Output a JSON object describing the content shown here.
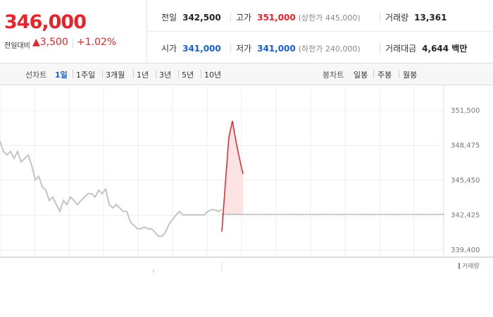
{
  "quote": {
    "price": "346,000",
    "change_label": "전일대비",
    "change": "▲3,500",
    "change_pct": "+1.02%",
    "stats": [
      {
        "label": "전일",
        "value": "342,500"
      },
      {
        "label": "고가",
        "value": "351,000",
        "note": "(상한가 445,000)"
      },
      {
        "label": "거래량",
        "value": "13,361"
      },
      {
        "label": "시가",
        "value": "341,000"
      },
      {
        "label": "저가",
        "value": "341,000",
        "note": "(하한가 240,000)"
      },
      {
        "label": "거래대금",
        "value": "4,644 백만"
      }
    ]
  },
  "tabs": {
    "line_label": "선차트",
    "line": [
      "1일",
      "1주일",
      "3개월",
      "1년",
      "3년",
      "5년",
      "10년"
    ],
    "candle_label": "봉차트",
    "candle": [
      "일봉",
      "주봉",
      "월봉"
    ]
  },
  "chart_data": {
    "type": "line",
    "categories": [
      null,
      null,
      null,
      null,
      null,
      null,
      null,
      null,
      null,
      null,
      null,
      null,
      null,
      null,
      null,
      null,
      null,
      null,
      null,
      null,
      null,
      null,
      null,
      null,
      null,
      null,
      null,
      null,
      null,
      null,
      null,
      null,
      null,
      null,
      null,
      null,
      null,
      null,
      null,
      null,
      null,
      null,
      null,
      null,
      null,
      null,
      null,
      null,
      null,
      null,
      null,
      null,
      null,
      null,
      null,
      null,
      null,
      null,
      null,
      null,
      null,
      null,
      null,
      null,
      null,
      null,
      null,
      null,
      null,
      null,
      null,
      null,
      null,
      null,
      null,
      null,
      null,
      null,
      null,
      null,
      null,
      null,
      null,
      null,
      null,
      null,
      null,
      null,
      null,
      null,
      null,
      null,
      null,
      null,
      null,
      null,
      null,
      null,
      null,
      null,
      null,
      null,
      null,
      null,
      null,
      null,
      null,
      null,
      null,
      null,
      null,
      null,
      null,
      null,
      null,
      null,
      null,
      null,
      null,
      null,
      null,
      null,
      null,
      null,
      null,
      null,
      null
    ],
    "series": [
      {
        "color": "#c4c4c4",
        "values": [
          348850,
          347950,
          347650,
          347950,
          347350,
          347950,
          347050,
          347350,
          347650,
          346750,
          345500,
          345800,
          344900,
          344600,
          343700,
          344000,
          343350,
          342750,
          343700,
          343350,
          344000,
          343700,
          343350,
          343700,
          344000,
          344300,
          344300,
          344000,
          344600,
          344300,
          344700,
          343350,
          343050,
          343350,
          343050,
          342750,
          342750,
          341850,
          341550,
          341250,
          341250,
          341400,
          341250,
          341250,
          340950,
          340600,
          340600,
          340950,
          341650,
          342050,
          342450,
          342750,
          342450,
          342450,
          342450,
          342450,
          342450,
          342450,
          342450,
          342750,
          342900,
          342900,
          342750,
          342900,
          null,
          null,
          null,
          null,
          null,
          null,
          null,
          null,
          null,
          null,
          null,
          null,
          null,
          null,
          null,
          null,
          null,
          null,
          null,
          null,
          null,
          null,
          null,
          null,
          null,
          null,
          null,
          null,
          null,
          null,
          null,
          null,
          null,
          null,
          null,
          null,
          null,
          null,
          null,
          null,
          null,
          null,
          null,
          null,
          null,
          null,
          null,
          null,
          null,
          null,
          null,
          null,
          null,
          null,
          null,
          null,
          null,
          null,
          null,
          null,
          null,
          null,
          null
        ]
      },
      {
        "color": "#e5242b",
        "fill": "#fde3e4",
        "values": [
          null,
          null,
          null,
          null,
          null,
          null,
          null,
          null,
          null,
          null,
          null,
          null,
          null,
          null,
          null,
          null,
          null,
          null,
          null,
          null,
          null,
          null,
          null,
          null,
          null,
          null,
          null,
          null,
          null,
          null,
          null,
          null,
          null,
          null,
          null,
          null,
          null,
          null,
          null,
          null,
          null,
          null,
          null,
          null,
          null,
          null,
          null,
          null,
          null,
          null,
          null,
          null,
          null,
          null,
          null,
          null,
          null,
          null,
          null,
          null,
          null,
          null,
          null,
          341000,
          345200,
          349200,
          350600,
          348850,
          347350,
          346000,
          null,
          null,
          null,
          null,
          null,
          null,
          null,
          null,
          null,
          null,
          null,
          null,
          null,
          null,
          null,
          null,
          null,
          null,
          null,
          null,
          null,
          null,
          null,
          null,
          null,
          null,
          null,
          null,
          null,
          null,
          null,
          null,
          null,
          null,
          null,
          null,
          null,
          null,
          null,
          null,
          null,
          null,
          null,
          null,
          null,
          null,
          null,
          null,
          null,
          null,
          null,
          null,
          null,
          null,
          null,
          null,
          null
        ]
      }
    ],
    "baseline": 342500,
    "ylim": [
      338790,
      353270
    ],
    "yticks": [
      {
        "value": 339400,
        "label": "339,400"
      },
      {
        "value": 342425,
        "label": "342,425"
      },
      {
        "value": 345450,
        "label": "345,450"
      },
      {
        "value": 348475,
        "label": "348,475"
      },
      {
        "value": 351500,
        "label": "351,500"
      }
    ],
    "grid": true,
    "volume_label": "거래량"
  }
}
